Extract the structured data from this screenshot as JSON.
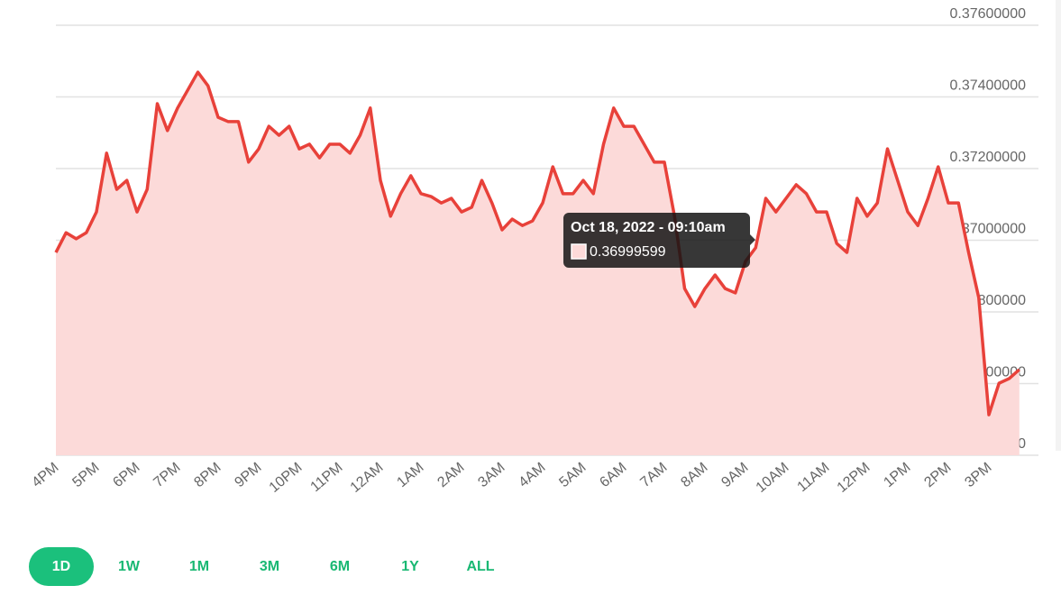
{
  "chart_data": {
    "type": "area",
    "categories": [
      "4PM",
      null,
      null,
      null,
      "5PM",
      null,
      null,
      null,
      "6PM",
      null,
      null,
      null,
      "7PM",
      null,
      null,
      null,
      "8PM",
      null,
      null,
      null,
      "9PM",
      null,
      null,
      null,
      "10PM",
      null,
      null,
      null,
      "11PM",
      null,
      null,
      null,
      "12AM",
      null,
      null,
      null,
      "1AM",
      null,
      null,
      null,
      "2AM",
      null,
      null,
      null,
      "3AM",
      null,
      null,
      null,
      "4AM",
      null,
      null,
      null,
      "5AM",
      null,
      null,
      null,
      "6AM",
      null,
      null,
      null,
      "7AM",
      null,
      null,
      null,
      "8AM",
      null,
      null,
      null,
      "9AM",
      null,
      null,
      null,
      "10AM",
      null,
      null,
      null,
      "11AM",
      null,
      null,
      null,
      "12PM",
      null,
      null,
      null,
      "1PM",
      null,
      null,
      null,
      "2PM",
      null,
      null,
      null,
      "3PM",
      null,
      null,
      null
    ],
    "values": [
      0.36966,
      0.37021,
      0.37004,
      0.37021,
      0.37079,
      0.37243,
      0.37142,
      0.37167,
      0.37079,
      0.37142,
      0.37381,
      0.37306,
      0.37369,
      0.37419,
      0.37469,
      0.37431,
      0.37343,
      0.37331,
      0.37331,
      0.37218,
      0.37255,
      0.37318,
      0.37293,
      0.37318,
      0.37255,
      0.37268,
      0.3723,
      0.37268,
      0.37268,
      0.37243,
      0.37293,
      0.37369,
      0.37167,
      0.37067,
      0.3713,
      0.3718,
      0.3713,
      0.37122,
      0.37104,
      0.37117,
      0.37079,
      0.37092,
      0.37167,
      0.37104,
      0.37029,
      0.37059,
      0.37041,
      0.37054,
      0.37104,
      0.37205,
      0.3713,
      0.3713,
      0.37167,
      0.3713,
      0.37268,
      0.37369,
      0.37318,
      0.37318,
      0.37268,
      0.37218,
      0.37218,
      0.37067,
      0.36865,
      0.36815,
      0.36865,
      0.36903,
      0.36865,
      0.36853,
      0.36941,
      0.36979,
      0.37117,
      0.37079,
      0.37117,
      0.37155,
      0.3713,
      0.37079,
      0.37079,
      0.36991,
      0.36966,
      0.37117,
      0.37067,
      0.37104,
      0.37255,
      0.37167,
      0.37079,
      0.37041,
      0.37117,
      0.37205,
      0.37104,
      0.37104,
      0.36966,
      0.3684,
      0.36513,
      0.36601,
      0.36614,
      0.36639
    ],
    "color": "#e8413a",
    "fill_color": "#fcdad9",
    "ylim": [
      0.364,
      0.376
    ],
    "yticks": [
      {
        "value": 0.364,
        "label": "0.36400000"
      },
      {
        "value": 0.366,
        "label": "0.36600000"
      },
      {
        "value": 0.368,
        "label": "0.36800000"
      },
      {
        "value": 0.37,
        "label": "0.37000000"
      },
      {
        "value": 0.372,
        "label": "0.37200000"
      },
      {
        "value": 0.374,
        "label": "0.37400000"
      },
      {
        "value": 0.376,
        "label": "0.37600000"
      }
    ],
    "grid": true,
    "tooltip": {
      "title": "Oct 18, 2022 - 09:10am",
      "value": 0.36999599
    }
  },
  "range_buttons": [
    "1D",
    "1W",
    "1M",
    "3M",
    "6M",
    "1Y",
    "ALL"
  ]
}
